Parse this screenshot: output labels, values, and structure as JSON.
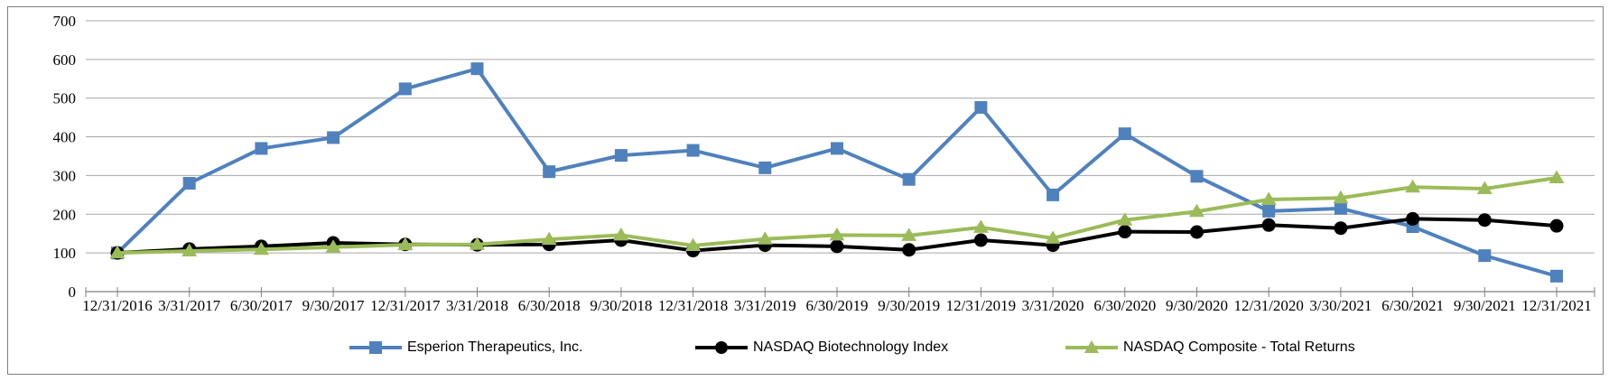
{
  "figure": {
    "background_color": "#FFFFFF",
    "border_color": "#7F7F7F"
  },
  "chart_data": {
    "type": "line",
    "title": "",
    "xlabel": "",
    "ylabel": "",
    "ylim": [
      0,
      700
    ],
    "yticks": [
      0,
      100,
      200,
      300,
      400,
      500,
      600,
      700
    ],
    "grid": "horizontal",
    "legend_position": "bottom",
    "gridline_color": "#A6A6A6",
    "axis_color": "#808080",
    "tick_label_color": "#000000",
    "x_categories": [
      "12/31/2016",
      "3/31/2017",
      "6/30/2017",
      "9/30/2017",
      "12/31/2017",
      "3/31/2018",
      "6/30/2018",
      "9/30/2018",
      "12/31/2018",
      "3/31/2019",
      "6/30/2019",
      "9/30/2019",
      "12/31/2019",
      "3/31/2020",
      "6/30/2020",
      "9/30/2020",
      "12/31/2020",
      "3/30/2021",
      "6/30/2021",
      "9/30/2021",
      "12/31/2021"
    ],
    "series": [
      {
        "name": "Esperion Therapeutics, Inc.",
        "color": "#4F81BD",
        "marker": "square",
        "values": [
          100,
          280,
          370,
          398,
          524,
          576,
          310,
          352,
          365,
          320,
          370,
          290,
          476,
          250,
          408,
          298,
          208,
          215,
          168,
          93,
          40
        ]
      },
      {
        "name": "NASDAQ Biotechnology Index",
        "color": "#000000",
        "marker": "circle",
        "values": [
          100,
          110,
          117,
          126,
          122,
          121,
          122,
          133,
          106,
          120,
          117,
          108,
          133,
          120,
          155,
          154,
          172,
          164,
          188,
          185,
          170
        ]
      },
      {
        "name": "NASDAQ Composite - Total Returns",
        "color": "#9BBB59",
        "marker": "triangle",
        "values": [
          100,
          105,
          109,
          115,
          121,
          122,
          135,
          146,
          119,
          136,
          146,
          145,
          166,
          138,
          185,
          207,
          238,
          242,
          270,
          266,
          294
        ]
      }
    ]
  }
}
